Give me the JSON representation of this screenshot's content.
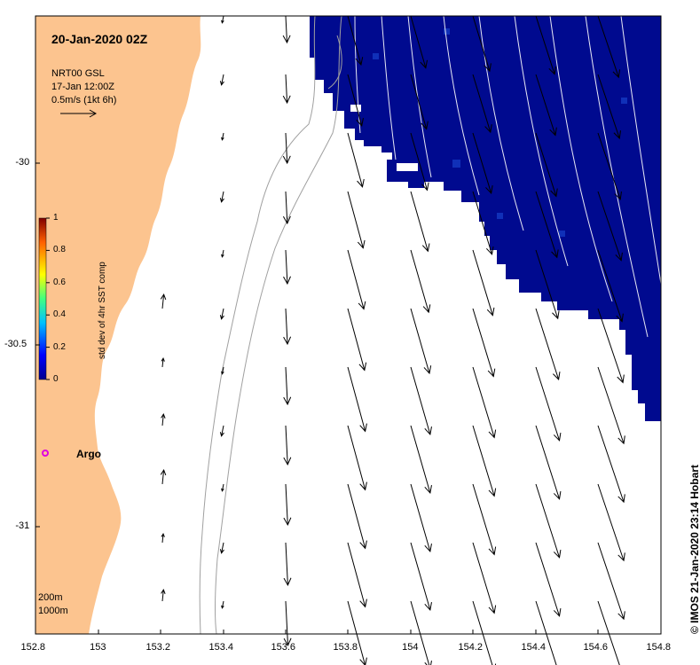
{
  "title": "20-Jan-2020 02Z",
  "product": "NRT00 GSL",
  "velocity_date": "17-Jan 12:00Z",
  "scale_label": "0.5m/s (1kt 6h)",
  "argo_label": "Argo",
  "depth_labels": [
    "200m",
    "1000m"
  ],
  "credit": "© IMOS 21-Jan-2020 23:14 Hobart",
  "colorbar": {
    "title": "std dev of 4hr SST comp",
    "ticks": [
      "0",
      "0.2",
      "0.4",
      "0.6",
      "0.8",
      "1"
    ]
  },
  "axes": {
    "lon_ticks": [
      "152.8",
      "153",
      "153.2",
      "153.4",
      "153.6",
      "153.8",
      "154",
      "154.2",
      "154.4",
      "154.6",
      "154.8"
    ],
    "lat_ticks": [
      "-30",
      "-30.5",
      "-31"
    ],
    "lon_range": [
      152.8,
      154.8
    ],
    "lat_range": [
      -31.3,
      -29.59
    ]
  },
  "colors": {
    "land": "#fcc48f",
    "sst_cloudfree": "#000a8f",
    "vectors": "#000000",
    "argo": "#e000e0",
    "contours": "#a0a0a0"
  }
}
